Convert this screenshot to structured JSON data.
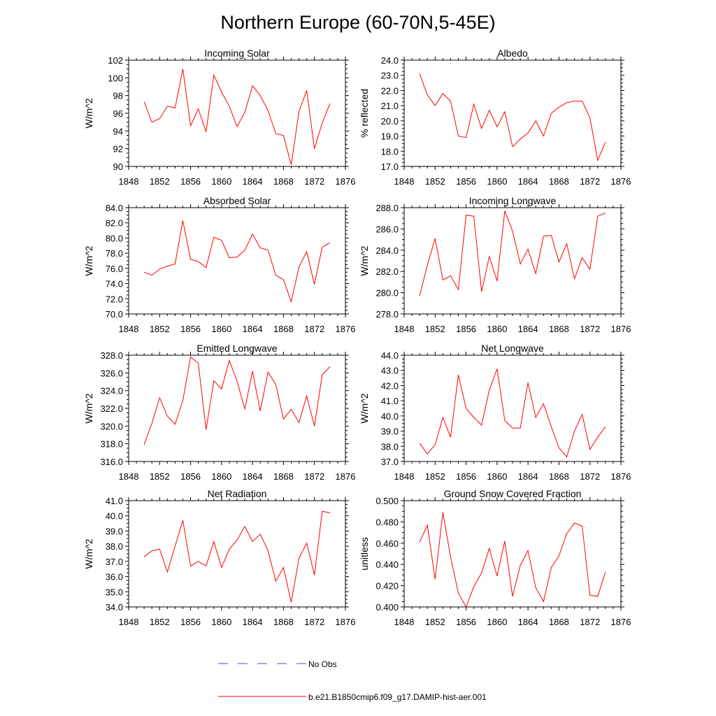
{
  "figure": {
    "title": "Northern Europe (60-70N,5-45E)",
    "legend": [
      {
        "label": "No Obs",
        "color": "#4a4adf",
        "style": "dashed"
      },
      {
        "label": "b.e21.B1850cmip6.f09_g17.DAMIP-hist-aer.001",
        "color": "#ff0000",
        "style": "solid"
      }
    ]
  },
  "chart_data": [
    {
      "type": "line",
      "title": "Incoming Solar",
      "ylabel": "W/m^2",
      "xlim": [
        1848,
        1876
      ],
      "ylim": [
        90,
        102
      ],
      "xticks": [
        "1848",
        "1852",
        "1856",
        "1860",
        "1864",
        "1868",
        "1872",
        "1876"
      ],
      "yticks": [
        "90",
        "92",
        "94",
        "96",
        "98",
        "100",
        "102"
      ],
      "x": [
        1850,
        1851,
        1852,
        1853,
        1854,
        1855,
        1856,
        1857,
        1858,
        1859,
        1860,
        1861,
        1862,
        1863,
        1864,
        1865,
        1866,
        1867,
        1868,
        1869,
        1870,
        1871,
        1872,
        1873,
        1874
      ],
      "series": [
        {
          "color": "#ff0000",
          "values": [
            97.3,
            95.0,
            95.4,
            96.8,
            96.6,
            101.0,
            94.6,
            96.5,
            93.9,
            100.3,
            98.4,
            96.8,
            94.5,
            96.1,
            99.1,
            98.0,
            96.3,
            93.7,
            93.5,
            90.2,
            96.2,
            98.6,
            92.0,
            94.9,
            97.1
          ]
        }
      ]
    },
    {
      "type": "line",
      "title": "Albedo",
      "ylabel": "% reflected",
      "xlim": [
        1848,
        1876
      ],
      "ylim": [
        17.0,
        24.0
      ],
      "xticks": [
        "1848",
        "1852",
        "1856",
        "1860",
        "1864",
        "1868",
        "1872",
        "1876"
      ],
      "yticks": [
        "17.0",
        "18.0",
        "19.0",
        "20.0",
        "21.0",
        "22.0",
        "23.0",
        "24.0"
      ],
      "x": [
        1850,
        1851,
        1852,
        1853,
        1854,
        1855,
        1856,
        1857,
        1858,
        1859,
        1860,
        1861,
        1862,
        1863,
        1864,
        1865,
        1866,
        1867,
        1868,
        1869,
        1870,
        1871,
        1872,
        1873,
        1874
      ],
      "series": [
        {
          "color": "#ff0000",
          "values": [
            23.1,
            21.7,
            21.0,
            21.8,
            21.3,
            19.0,
            18.9,
            21.1,
            19.5,
            20.7,
            19.6,
            20.6,
            18.3,
            18.8,
            19.2,
            20.0,
            19.0,
            20.5,
            20.9,
            21.2,
            21.3,
            21.3,
            20.2,
            17.4,
            18.6
          ]
        }
      ]
    },
    {
      "type": "line",
      "title": "Absorbed Solar",
      "ylabel": "W/m^2",
      "xlim": [
        1848,
        1876
      ],
      "ylim": [
        70.0,
        84.0
      ],
      "xticks": [
        "1848",
        "1852",
        "1856",
        "1860",
        "1864",
        "1868",
        "1872",
        "1876"
      ],
      "yticks": [
        "70.0",
        "72.0",
        "74.0",
        "76.0",
        "78.0",
        "80.0",
        "82.0",
        "84.0"
      ],
      "x": [
        1850,
        1851,
        1852,
        1853,
        1854,
        1855,
        1856,
        1857,
        1858,
        1859,
        1860,
        1861,
        1862,
        1863,
        1864,
        1865,
        1866,
        1867,
        1868,
        1869,
        1870,
        1871,
        1872,
        1873,
        1874
      ],
      "series": [
        {
          "color": "#ff0000",
          "values": [
            75.5,
            75.1,
            75.9,
            76.3,
            76.6,
            82.3,
            77.2,
            76.9,
            76.1,
            80.1,
            79.7,
            77.4,
            77.5,
            78.4,
            80.5,
            78.7,
            78.4,
            75.1,
            74.5,
            71.6,
            76.2,
            78.2,
            73.9,
            78.8,
            79.4
          ]
        }
      ]
    },
    {
      "type": "line",
      "title": "Incoming Longwave",
      "ylabel": "W/m^2",
      "xlim": [
        1848,
        1876
      ],
      "ylim": [
        278.0,
        288.0
      ],
      "xticks": [
        "1848",
        "1852",
        "1856",
        "1860",
        "1864",
        "1868",
        "1872",
        "1876"
      ],
      "yticks": [
        "278.0",
        "280.0",
        "282.0",
        "284.0",
        "286.0",
        "288.0"
      ],
      "x": [
        1850,
        1851,
        1852,
        1853,
        1854,
        1855,
        1856,
        1857,
        1858,
        1859,
        1860,
        1861,
        1862,
        1863,
        1864,
        1865,
        1866,
        1867,
        1868,
        1869,
        1870,
        1871,
        1872,
        1873,
        1874
      ],
      "series": [
        {
          "color": "#ff0000",
          "values": [
            279.7,
            282.6,
            285.1,
            281.2,
            281.6,
            280.3,
            287.3,
            287.2,
            280.1,
            283.4,
            281.1,
            287.7,
            285.8,
            282.7,
            284.1,
            281.8,
            285.3,
            285.4,
            282.9,
            284.6,
            281.3,
            283.3,
            282.2,
            287.2,
            287.5
          ]
        }
      ]
    },
    {
      "type": "line",
      "title": "Emitted Longwave",
      "ylabel": "W/m^2",
      "xlim": [
        1848,
        1876
      ],
      "ylim": [
        316.0,
        328.0
      ],
      "xticks": [
        "1848",
        "1852",
        "1856",
        "1860",
        "1864",
        "1868",
        "1872",
        "1876"
      ],
      "yticks": [
        "316.0",
        "318.0",
        "320.0",
        "322.0",
        "324.0",
        "326.0",
        "328.0"
      ],
      "x": [
        1850,
        1851,
        1852,
        1853,
        1854,
        1855,
        1856,
        1857,
        1858,
        1859,
        1860,
        1861,
        1862,
        1863,
        1864,
        1865,
        1866,
        1867,
        1868,
        1869,
        1870,
        1871,
        1872,
        1873,
        1874
      ],
      "series": [
        {
          "color": "#ff0000",
          "values": [
            317.9,
            320.3,
            323.2,
            321.1,
            320.2,
            322.9,
            327.8,
            327.1,
            319.6,
            325.1,
            324.2,
            327.4,
            325.1,
            321.9,
            326.2,
            321.7,
            326.1,
            324.7,
            320.8,
            321.9,
            320.4,
            323.4,
            320.0,
            325.8,
            326.7
          ]
        }
      ]
    },
    {
      "type": "line",
      "title": "Net Longwave",
      "ylabel": "W/m^2",
      "xlim": [
        1848,
        1876
      ],
      "ylim": [
        37.0,
        44.0
      ],
      "xticks": [
        "1848",
        "1852",
        "1856",
        "1860",
        "1864",
        "1868",
        "1872",
        "1876"
      ],
      "yticks": [
        "37.0",
        "38.0",
        "39.0",
        "40.0",
        "41.0",
        "42.0",
        "43.0",
        "44.0"
      ],
      "x": [
        1850,
        1851,
        1852,
        1853,
        1854,
        1855,
        1856,
        1857,
        1858,
        1859,
        1860,
        1861,
        1862,
        1863,
        1864,
        1865,
        1866,
        1867,
        1868,
        1869,
        1870,
        1871,
        1872,
        1873,
        1874
      ],
      "series": [
        {
          "color": "#ff0000",
          "values": [
            38.2,
            37.5,
            38.1,
            39.9,
            38.6,
            42.7,
            40.5,
            39.9,
            39.4,
            41.7,
            43.1,
            39.7,
            39.2,
            39.2,
            42.2,
            39.9,
            40.8,
            39.3,
            37.9,
            37.3,
            39.0,
            40.1,
            37.8,
            38.6,
            39.3
          ]
        }
      ]
    },
    {
      "type": "line",
      "title": "Net Radiation",
      "ylabel": "W/m^2",
      "xlim": [
        1848,
        1876
      ],
      "ylim": [
        34.0,
        41.0
      ],
      "xticks": [
        "1848",
        "1852",
        "1856",
        "1860",
        "1864",
        "1868",
        "1872",
        "1876"
      ],
      "yticks": [
        "34.0",
        "35.0",
        "36.0",
        "37.0",
        "38.0",
        "39.0",
        "40.0",
        "41.0"
      ],
      "x": [
        1850,
        1851,
        1852,
        1853,
        1854,
        1855,
        1856,
        1857,
        1858,
        1859,
        1860,
        1861,
        1862,
        1863,
        1864,
        1865,
        1866,
        1867,
        1868,
        1869,
        1870,
        1871,
        1872,
        1873,
        1874
      ],
      "series": [
        {
          "color": "#ff0000",
          "values": [
            37.3,
            37.7,
            37.8,
            36.3,
            38.0,
            39.7,
            36.7,
            37.0,
            36.7,
            38.3,
            36.6,
            37.8,
            38.4,
            39.3,
            38.3,
            38.8,
            37.7,
            35.7,
            36.6,
            34.3,
            37.2,
            38.2,
            36.1,
            40.3,
            40.2
          ]
        }
      ]
    },
    {
      "type": "line",
      "title": "Ground Snow Covered Fraction",
      "ylabel": "unitless",
      "xlim": [
        1848,
        1876
      ],
      "ylim": [
        0.4,
        0.5
      ],
      "xticks": [
        "1848",
        "1852",
        "1856",
        "1860",
        "1864",
        "1868",
        "1872",
        "1876"
      ],
      "yticks": [
        "0.400",
        "0.420",
        "0.440",
        "0.460",
        "0.480",
        "0.500"
      ],
      "x": [
        1850,
        1851,
        1852,
        1853,
        1854,
        1855,
        1856,
        1857,
        1858,
        1859,
        1860,
        1861,
        1862,
        1863,
        1864,
        1865,
        1866,
        1867,
        1868,
        1869,
        1870,
        1871,
        1872,
        1873,
        1874
      ],
      "series": [
        {
          "color": "#ff0000",
          "values": [
            0.461,
            0.477,
            0.426,
            0.489,
            0.447,
            0.413,
            0.4,
            0.419,
            0.432,
            0.455,
            0.429,
            0.462,
            0.41,
            0.439,
            0.453,
            0.418,
            0.405,
            0.437,
            0.448,
            0.469,
            0.479,
            0.476,
            0.411,
            0.41,
            0.433
          ]
        }
      ]
    }
  ]
}
